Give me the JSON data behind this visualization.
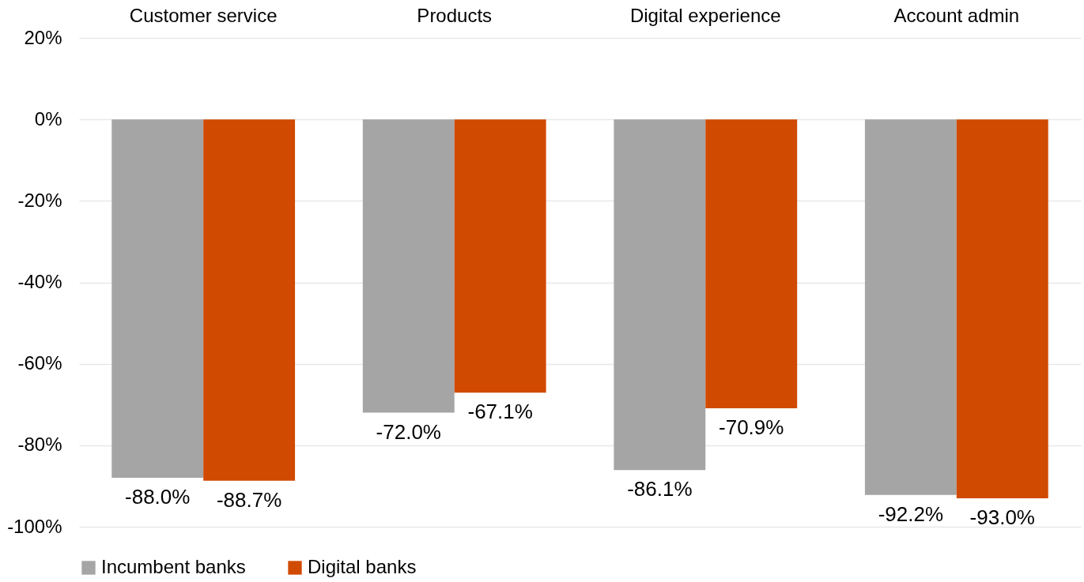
{
  "chart_data": {
    "type": "bar",
    "categories": [
      "Customer service",
      "Products",
      "Digital experience",
      "Account admin"
    ],
    "series": [
      {
        "name": "Incumbent banks",
        "color": "#a5a5a5",
        "values": [
          -88.0,
          -72.0,
          -86.1,
          -92.2
        ],
        "value_labels": [
          "-88.0%",
          "-72.0%",
          "-86.1%",
          "-92.2%"
        ]
      },
      {
        "name": "Digital banks",
        "color": "#d04a02",
        "values": [
          -88.7,
          -67.1,
          -70.9,
          -93.0
        ],
        "value_labels": [
          "-88.7%",
          "-67.1%",
          "-70.9%",
          "-93.0%"
        ]
      }
    ],
    "ylim": [
      -100,
      20
    ],
    "yticks": [
      {
        "value": -100,
        "label": "-100%"
      },
      {
        "value": -80,
        "label": "-80%"
      },
      {
        "value": -60,
        "label": "-60%"
      },
      {
        "value": -40,
        "label": "-40%"
      },
      {
        "value": -20,
        "label": "-20%"
      },
      {
        "value": 0,
        "label": "0%"
      },
      {
        "value": 20,
        "label": "20%"
      }
    ],
    "grid": "y",
    "legend": "bottom"
  }
}
